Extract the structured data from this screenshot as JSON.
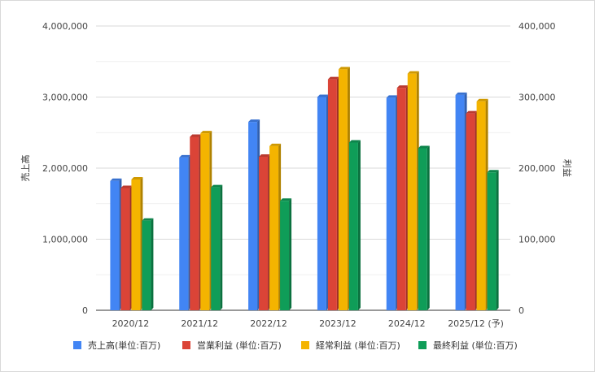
{
  "chart_data": {
    "type": "bar",
    "categories": [
      "2020/12",
      "2021/12",
      "2022/12",
      "2023/12",
      "2024/12",
      "2025/12 (予)"
    ],
    "left_axis": {
      "label": "売上高",
      "range": [
        0,
        4000000
      ],
      "ticks": [
        "0",
        "1,000,000",
        "2,000,000",
        "3,000,000",
        "4,000,000"
      ]
    },
    "right_axis": {
      "label": "利益",
      "range": [
        0,
        400000
      ],
      "ticks": [
        "0",
        "100,000",
        "200,000",
        "300,000",
        "400,000"
      ]
    },
    "series": [
      {
        "name": "売上高(単位:百万)",
        "axis": "left",
        "color": "#4285F4",
        "values": [
          1820000,
          2150000,
          2650000,
          3000000,
          2990000,
          3030000
        ]
      },
      {
        "name": "営業利益 (単位:百万)",
        "axis": "right",
        "color": "#DB4437",
        "values": [
          172000,
          244000,
          216000,
          325000,
          313000,
          277000
        ]
      },
      {
        "name": "経常利益 (単位:百万)",
        "axis": "right",
        "color": "#F4B400",
        "values": [
          184000,
          249000,
          231000,
          339000,
          333000,
          294000
        ]
      },
      {
        "name": "最終利益 (単位:百万)",
        "axis": "right",
        "color": "#0F9D58",
        "values": [
          126000,
          173000,
          154000,
          236000,
          228000,
          194000
        ]
      }
    ],
    "grid": true,
    "legend": "bottom"
  }
}
